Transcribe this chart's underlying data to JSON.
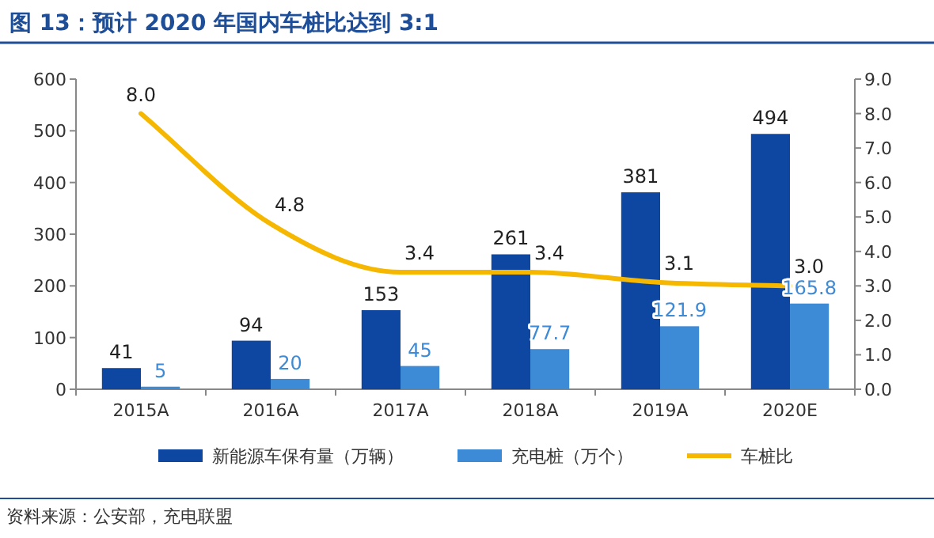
{
  "chart_data": {
    "type": "bar",
    "title": "图 13：预计 2020 年国内车桩比达到 3:1",
    "categories": [
      "2015A",
      "2016A",
      "2017A",
      "2018A",
      "2019A",
      "2020E"
    ],
    "series": [
      {
        "name": "新能源车保有量（万辆）",
        "color": "#0d47a1",
        "values": [
          41,
          94,
          153,
          261,
          381,
          494
        ],
        "value_labels": [
          "41",
          "94",
          "153",
          "261",
          "381",
          "494"
        ]
      },
      {
        "name": "充电桩（万个）",
        "color": "#3d8ad6",
        "values": [
          5,
          20,
          45,
          77.7,
          121.9,
          165.8
        ],
        "value_labels": [
          "5",
          "20",
          "45",
          "77.7",
          "121.9",
          "165.8"
        ]
      },
      {
        "name": "车桩比",
        "type": "line",
        "axis": "y2",
        "color": "#f5b700",
        "values": [
          8.0,
          4.8,
          3.4,
          3.4,
          3.1,
          3.0
        ],
        "value_labels": [
          "8.0",
          "4.8",
          "3.4",
          "3.4",
          "3.1",
          "3.0"
        ]
      }
    ],
    "ylim": [
      0,
      600
    ],
    "yticks": [
      0,
      100,
      200,
      300,
      400,
      500,
      600
    ],
    "y2lim": [
      0,
      9
    ],
    "y2ticks": [
      {
        "value": 0,
        "label": "0.0"
      },
      {
        "value": 1,
        "label": "1.0"
      },
      {
        "value": 2,
        "label": "2.0"
      },
      {
        "value": 3,
        "label": "3.0"
      },
      {
        "value": 4,
        "label": "4.0"
      },
      {
        "value": 5,
        "label": "5.0"
      },
      {
        "value": 6,
        "label": "6.0"
      },
      {
        "value": 7,
        "label": "7.0"
      },
      {
        "value": 8,
        "label": "8.0"
      },
      {
        "value": 9,
        "label": "9.0"
      }
    ],
    "legend": "bottom",
    "annotations": [
      "资料来源：公安部，充电联盟"
    ]
  }
}
